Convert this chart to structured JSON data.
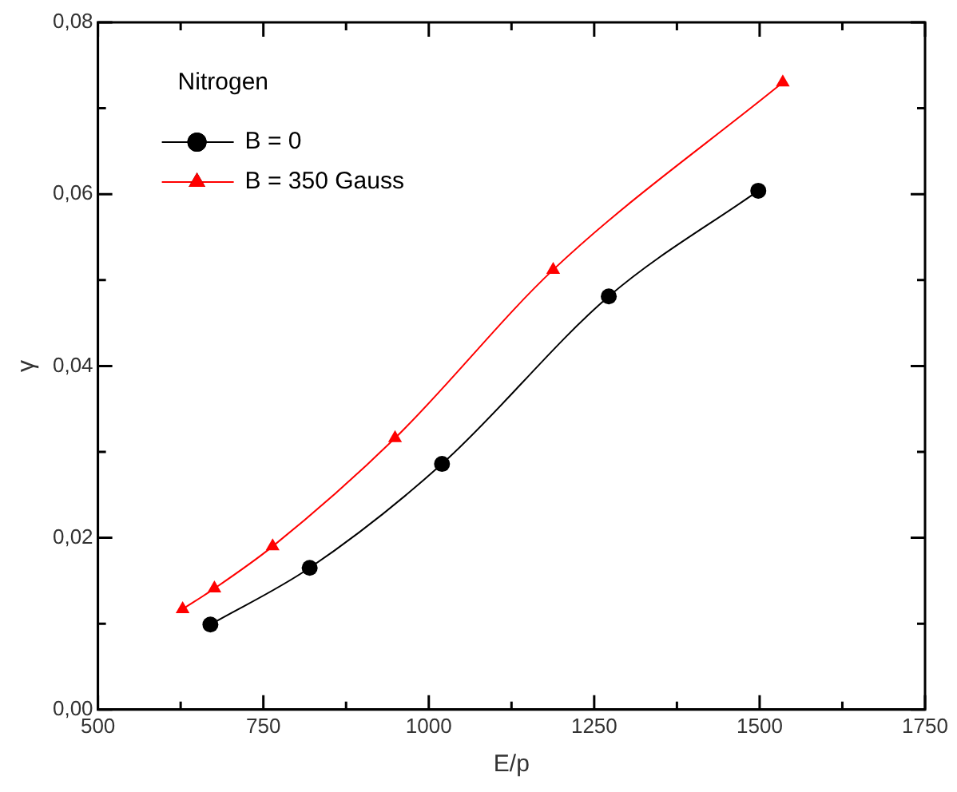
{
  "chart_data": {
    "type": "line",
    "xlabel": "E/p",
    "ylabel": "γ",
    "legend_title": "Nitrogen",
    "legend": "top left",
    "grid": false,
    "line_style": "solid",
    "xlim": [
      500,
      1750
    ],
    "xticks": [
      500,
      {
        "value": 625,
        "label": null
      },
      750,
      {
        "value": 875,
        "label": null
      },
      1000,
      {
        "value": 1125,
        "label": null
      },
      1250,
      {
        "value": 1375,
        "label": null
      },
      1500,
      {
        "value": 1625,
        "label": null
      },
      1750
    ],
    "ylim": [
      0,
      0.08
    ],
    "yticks": [
      {
        "value": 0,
        "label": "0,00"
      },
      {
        "value": 0.01,
        "label": null
      },
      {
        "value": 0.02,
        "label": "0,02"
      },
      {
        "value": 0.03,
        "label": null
      },
      {
        "value": 0.04,
        "label": "0,04"
      },
      {
        "value": 0.05,
        "label": null
      },
      {
        "value": 0.06,
        "label": "0,06"
      },
      {
        "value": 0.07,
        "label": null
      },
      {
        "value": 0.08,
        "label": "0,08"
      }
    ],
    "series": [
      {
        "name": "B = 0",
        "color": "#000000",
        "marker": "circle",
        "x": [
          670,
          820,
          1020,
          1272,
          1498
        ],
        "values": [
          0.0099,
          0.0165,
          0.0286,
          0.0481,
          0.0604
        ]
      },
      {
        "name": "B = 350 Gauss",
        "color": "#ff0000",
        "marker": "triangle",
        "x": [
          628,
          676,
          764,
          949,
          1188,
          1535
        ],
        "values": [
          0.0117,
          0.0141,
          0.019,
          0.0316,
          0.0512,
          0.073
        ]
      }
    ]
  }
}
